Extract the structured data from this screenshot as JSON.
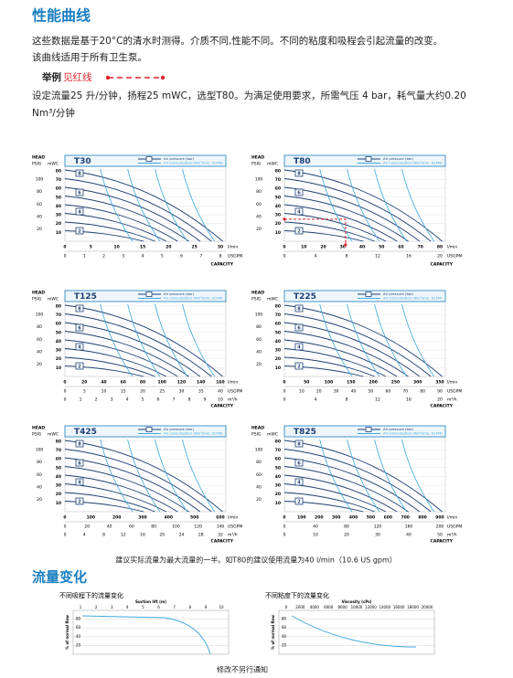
{
  "header": {
    "title": "性能曲线"
  },
  "intro": [
    "这些数据是基于20°C的清水时测得。介质不同,性能不同。不同的粘度和吸程会引起流量的改变。",
    "该曲线适用于所有卫生泵。"
  ],
  "example": {
    "label": "举例",
    "note": "见红线",
    "text": [
      "设定流量25 升/分钟，扬程25 mWC，选型T80。为满足使用要求，所需气压 4 bar，耗气量大约0.20",
      "Nm³/分钟"
    ]
  },
  "curve_charts": {
    "head": "HEAD",
    "psig": "PSIG",
    "mwc": "mWC",
    "legend_pressure": "Air pressure (bar)",
    "legend_air": "Air consumption (Nm³/min, SCFM)",
    "capacity": "CAPACITY",
    "psig_ticks": [
      20,
      40,
      60,
      80,
      100
    ],
    "mwc_ticks": [
      10,
      20,
      30,
      40,
      50,
      60,
      70,
      80
    ],
    "pressures": [
      8,
      6,
      4,
      2
    ],
    "unit_lmin": "l/min",
    "unit_usgpm": "USGPM",
    "unit_m3h": "m³/h",
    "charts": [
      {
        "title": "T30",
        "lmin": [
          0,
          5,
          10,
          15,
          20,
          25,
          30
        ],
        "usgpm": [
          0,
          1,
          2,
          3,
          4,
          5,
          6,
          7,
          8
        ]
      },
      {
        "title": "T80",
        "lmin": [
          0,
          10,
          20,
          30,
          40,
          50,
          60,
          70,
          80
        ],
        "usgpm": [
          0,
          4,
          8,
          12,
          16,
          20
        ]
      },
      {
        "title": "T125",
        "lmin": [
          0,
          20,
          40,
          60,
          80,
          100,
          120,
          140,
          160
        ],
        "usgpm": [
          0,
          5,
          10,
          15,
          20,
          25,
          30,
          35,
          40
        ],
        "m3h": [
          0,
          1,
          2,
          3,
          4,
          5,
          6,
          7,
          8,
          9,
          10
        ]
      },
      {
        "title": "T225",
        "lmin": [
          0,
          50,
          100,
          150,
          200,
          250,
          300,
          350
        ],
        "usgpm": [
          0,
          10,
          20,
          30,
          40,
          50,
          60,
          70,
          80,
          90
        ],
        "m3h": [
          0,
          4,
          8,
          12,
          16,
          20
        ]
      },
      {
        "title": "T425",
        "lmin": [
          0,
          100,
          200,
          300,
          400,
          500,
          600
        ],
        "usgpm": [
          0,
          20,
          40,
          60,
          80,
          100,
          120,
          140
        ],
        "m3h": [
          0,
          4,
          8,
          12,
          16,
          20,
          24,
          28,
          32
        ]
      },
      {
        "title": "T825",
        "lmin": [
          0,
          100,
          200,
          300,
          400,
          500,
          600,
          700,
          800,
          900
        ],
        "usgpm": [
          0,
          40,
          80,
          120,
          160,
          200
        ],
        "m3h": [
          0,
          10,
          20,
          30,
          40,
          50
        ]
      }
    ]
  },
  "footnote": "建议实际流量为最大流量的一半。如T80的建议使用流量为40 l/min（10.6 US gpm）",
  "section2": {
    "title": "流量变化"
  },
  "flow_charts": [
    {
      "title": "不同吸程下的流量变化",
      "x_label": "Suction lift (m)",
      "xticks": [
        1,
        2,
        3,
        4,
        5,
        6,
        7,
        8,
        9,
        10
      ],
      "y_label": "% of normal flow",
      "yticks": [
        80,
        60,
        40,
        20
      ]
    },
    {
      "title": "不同粘度下的流量变化",
      "x_label": "Viscosity (cPs)",
      "xticks": [
        0,
        2000,
        4000,
        6000,
        8000,
        10000,
        12000,
        14000,
        16000,
        18000,
        20000
      ],
      "y_label": "% of normal flow",
      "yticks": [
        80,
        60,
        40,
        20
      ]
    }
  ],
  "footer": "修改不另行通知"
}
